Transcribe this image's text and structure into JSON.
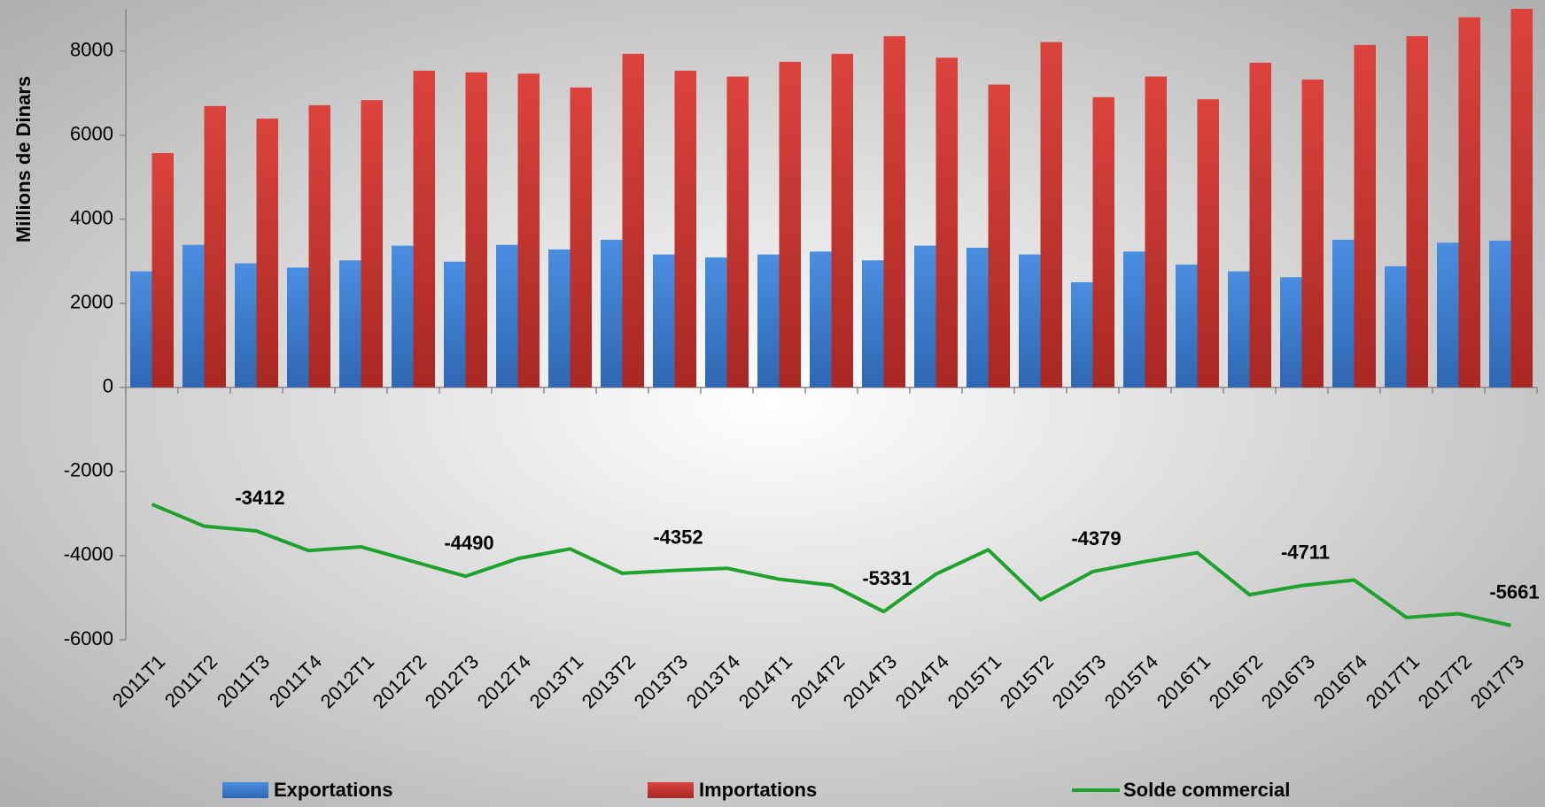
{
  "chart_data": {
    "type": "bar_line",
    "y_label": "Millions de Dinars",
    "categories": [
      "2011T1",
      "2011T2",
      "2011T3",
      "2011T4",
      "2012T1",
      "2012T2",
      "2012T3",
      "2012T4",
      "2013T1",
      "2013T2",
      "2013T3",
      "2013T4",
      "2014T1",
      "2014T2",
      "2014T3",
      "2014T4",
      "2015T1",
      "2015T2",
      "2015T3",
      "2015T4",
      "2016T1",
      "2016T2",
      "2016T3",
      "2016T4",
      "2017T1",
      "2017T2",
      "2017T3"
    ],
    "series": [
      {
        "name": "Exportations",
        "type": "bar",
        "color": "#3d7fd2",
        "values": [
          2760,
          3390,
          2950,
          2850,
          3020,
          3370,
          2990,
          3390,
          3280,
          3510,
          3160,
          3090,
          3160,
          3230,
          3020,
          3370,
          3320,
          3160,
          2500,
          3230,
          2920,
          2760,
          2620,
          3510,
          2880,
          3440,
          3490
        ]
      },
      {
        "name": "Importations",
        "type": "bar",
        "color": "#d13a35",
        "values": [
          5570,
          6690,
          6390,
          6710,
          6830,
          7530,
          7490,
          7460,
          7130,
          7930,
          7530,
          7390,
          7740,
          7930,
          8350,
          7840,
          7200,
          8210,
          6900,
          7390,
          6850,
          7720,
          7320,
          8140,
          8350,
          8800,
          9000
        ]
      },
      {
        "name": "Solde commercial",
        "type": "line",
        "color": "#1ea22d",
        "values": [
          -2780,
          -3300,
          -3412,
          -3880,
          -3790,
          -4140,
          -4490,
          -4070,
          -3840,
          -4420,
          -4352,
          -4300,
          -4560,
          -4700,
          -5331,
          -4440,
          -3860,
          -5050,
          -4379,
          -4140,
          -3930,
          -4930,
          -4711,
          -4580,
          -5470,
          -5380,
          -5661
        ],
        "value_labels": [
          null,
          null,
          "-3412",
          null,
          null,
          null,
          "-4490",
          null,
          null,
          null,
          "-4352",
          null,
          null,
          null,
          "-5331",
          null,
          null,
          null,
          "-4379",
          null,
          null,
          null,
          "-4711",
          null,
          null,
          null,
          "-5661"
        ]
      }
    ],
    "ylim": [
      -6000,
      9000
    ],
    "yticks": [
      -6000,
      -4000,
      -2000,
      0,
      2000,
      4000,
      6000,
      8000
    ],
    "legend": "bottom"
  }
}
